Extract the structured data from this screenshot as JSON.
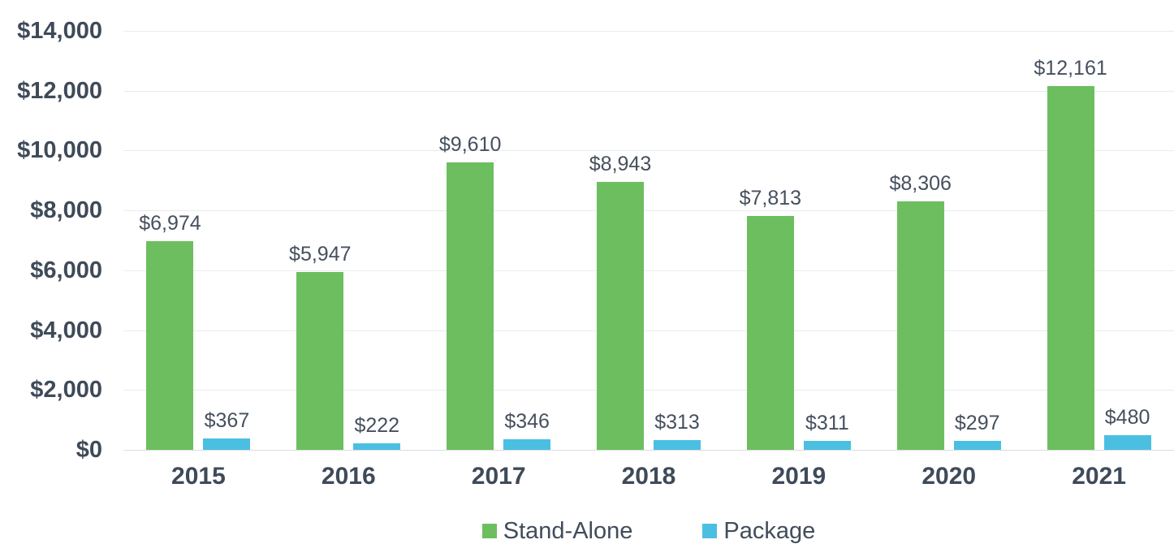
{
  "chart_data": {
    "type": "bar",
    "title": "",
    "categories": [
      "2015",
      "2016",
      "2017",
      "2018",
      "2019",
      "2020",
      "2021"
    ],
    "series": [
      {
        "name": "Stand-Alone",
        "color": "#6dbe5f",
        "values": [
          6974,
          5947,
          9610,
          8943,
          7813,
          8306,
          12161
        ],
        "labels": [
          "$6,974",
          "$5,947",
          "$9,610",
          "$8,943",
          "$7,813",
          "$8,306",
          "$12,161"
        ]
      },
      {
        "name": "Package",
        "color": "#4bbfe2",
        "values": [
          367,
          222,
          346,
          313,
          311,
          297,
          480
        ],
        "labels": [
          "$367",
          "$222",
          "$346",
          "$313",
          "$311",
          "$297",
          "$480"
        ]
      }
    ],
    "y_axis": {
      "min": 0,
      "max": 14000,
      "step": 2000,
      "tick_labels": [
        "$0",
        "$2,000",
        "$4,000",
        "$6,000",
        "$8,000",
        "$10,000",
        "$12,000",
        "$14,000"
      ]
    },
    "grid": true,
    "legend_position": "bottom",
    "colors": {
      "axis_text": "#3f4a59",
      "data_label_text": "#46505e",
      "gridline": "#e8ebee",
      "axis_line": "#d9dcdf",
      "background": "#ffffff"
    }
  }
}
